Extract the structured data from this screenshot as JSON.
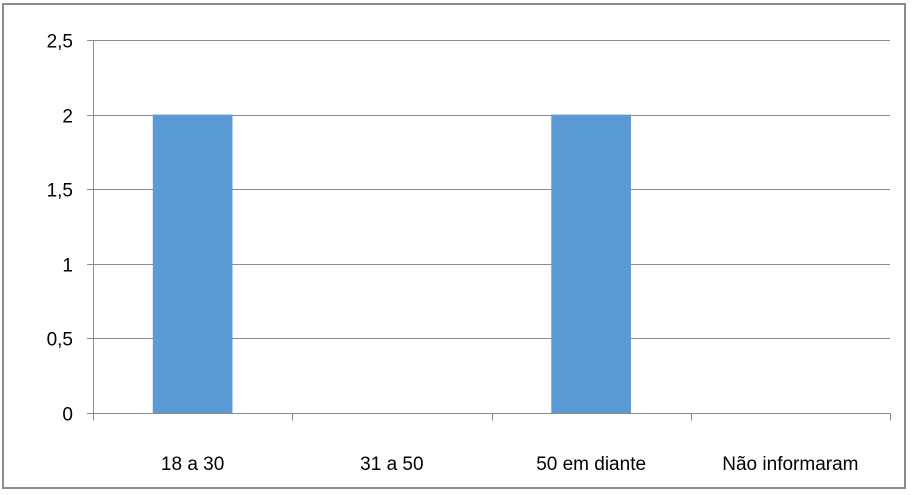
{
  "chart_data": {
    "type": "bar",
    "title": "",
    "xlabel": "",
    "ylabel": "",
    "categories": [
      "18 a 30",
      "31 a 50",
      "50 em diante",
      "Não informaram"
    ],
    "values": [
      2,
      0,
      2,
      0
    ],
    "ylim": [
      0,
      2.5
    ],
    "yticks": [
      0,
      0.5,
      1,
      1.5,
      2,
      2.5
    ],
    "ytick_labels": [
      "0",
      "0,5",
      "1",
      "1,5",
      "2",
      "2,5"
    ],
    "grid": true,
    "legend": "none",
    "colors": {
      "bar": "#5b9bd5",
      "grid": "#8c8c8c",
      "axis": "#8c8c8c",
      "border": "#8c8c8c"
    }
  }
}
